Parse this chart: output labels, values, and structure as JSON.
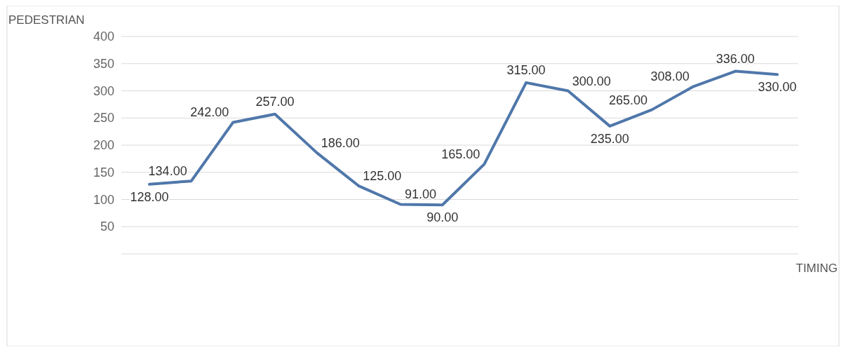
{
  "chart_data": {
    "type": "line",
    "xlabel": "TIMING",
    "ylabel": "PEDESTRIAN",
    "categories": [
      null,
      null,
      null,
      null,
      null,
      null,
      null,
      null,
      null,
      null,
      null,
      null,
      null,
      null,
      null,
      null
    ],
    "series": [
      {
        "color": "#4f77aa",
        "values": [
          128,
          134,
          242,
          257,
          186,
          125,
          91,
          90,
          165,
          315,
          300,
          235,
          265,
          308,
          336,
          330
        ]
      }
    ],
    "value_labels": [
      "128.00",
      "134.00",
      "242.00",
      "257.00",
      "186.00",
      "125.00",
      "91.00",
      "90.00",
      "165.00",
      "315.00",
      "300.00",
      "235.00",
      "265.00",
      "308.00",
      "336.00",
      "330.00"
    ],
    "ylim": [
      0,
      400
    ],
    "yticks": [
      {
        "value": 0,
        "label": null
      },
      50,
      100,
      150,
      200,
      250,
      300,
      350,
      400
    ],
    "grid": "y",
    "marker": "none"
  }
}
